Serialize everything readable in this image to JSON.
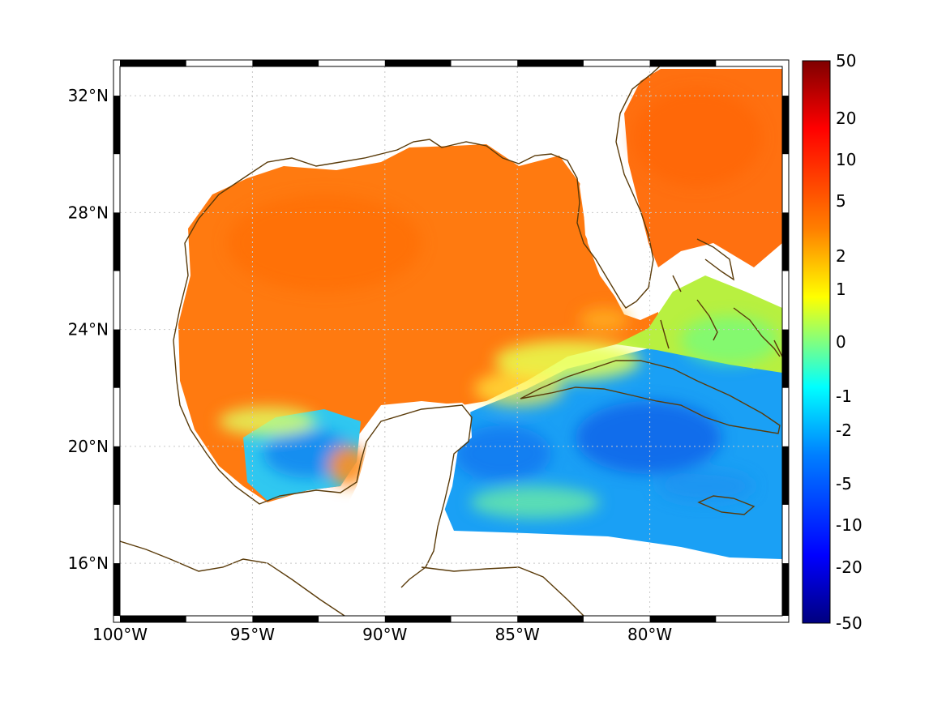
{
  "map": {
    "lon_ticks": [
      "100°W",
      "95°W",
      "90°W",
      "85°W",
      "80°W"
    ],
    "lon_values": [
      -100,
      -95,
      -90,
      -85,
      -80
    ],
    "lat_ticks": [
      "32°N",
      "28°N",
      "24°N",
      "20°N",
      "16°N"
    ],
    "lat_values": [
      32,
      28,
      24,
      20,
      16
    ],
    "lon_range": [
      -100,
      -75
    ],
    "lat_range": [
      14.2,
      33
    ],
    "grid": true,
    "coastline_color": "#5a3b0a",
    "land_color": "#ffffff",
    "regions": {
      "gulf_of_mexico": "positive (warm/orange)",
      "florida_atlantic": "positive (orange)",
      "bay_of_campeche": "near zero to negative (cyan/blue)",
      "caribbean_sea": "negative (blue/cyan)"
    }
  },
  "colorbar": {
    "labels": [
      "50",
      "20",
      "10",
      "5",
      "2",
      "1",
      "0",
      "-1",
      "-2",
      "-5",
      "-10",
      "-20",
      "-50"
    ],
    "colors": [
      "#7f0000",
      "#ff0000",
      "#ff8000",
      "#ffff00",
      "#80ff80",
      "#00ffff",
      "#0080ff",
      "#0000ff",
      "#00007f"
    ]
  }
}
